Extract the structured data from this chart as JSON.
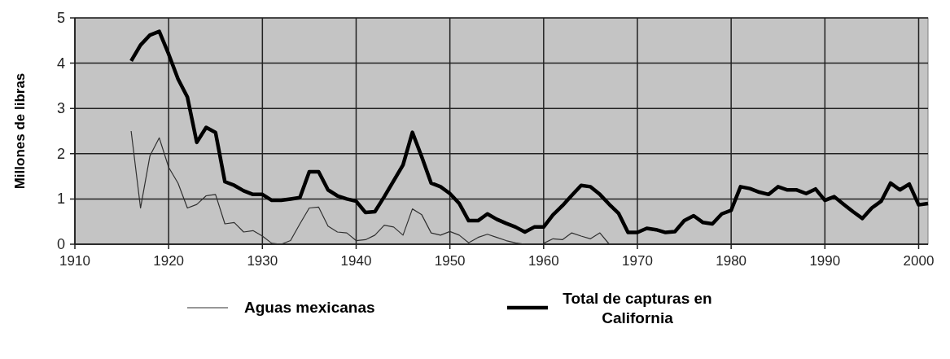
{
  "chart_data": {
    "type": "line",
    "ylabel": "Millones de libras",
    "xlim": [
      1910,
      2001
    ],
    "xticks": [
      1910,
      1920,
      1930,
      1940,
      1950,
      1960,
      1970,
      1980,
      1990,
      2000
    ],
    "ylim": [
      0,
      5
    ],
    "yticks": [
      0,
      1,
      2,
      3,
      4,
      5
    ],
    "grid": true,
    "legend": "bottom",
    "marker": "none",
    "series": [
      {
        "name": "Aguas mexicanas",
        "color": "#303030",
        "x": [
          1916,
          1917,
          1918,
          1919,
          1920,
          1921,
          1922,
          1923,
          1924,
          1925,
          1926,
          1927,
          1928,
          1929,
          1930,
          1931,
          1932,
          1933,
          1934,
          1935,
          1936,
          1937,
          1938,
          1939,
          1940,
          1941,
          1942,
          1943,
          1944,
          1945,
          1946,
          1947,
          1948,
          1949,
          1950,
          1951,
          1952,
          1953,
          1954,
          1955,
          1956,
          1957,
          1958,
          1959,
          1960,
          1961,
          1962,
          1963,
          1964,
          1965,
          1966,
          1967
        ],
        "values": [
          2.5,
          0.8,
          1.95,
          2.35,
          1.7,
          1.35,
          0.8,
          0.88,
          1.07,
          1.1,
          0.45,
          0.48,
          0.27,
          0.3,
          0.18,
          0.02,
          0,
          0.08,
          0.45,
          0.8,
          0.82,
          0.4,
          0.27,
          0.25,
          0.08,
          0.1,
          0.2,
          0.42,
          0.38,
          0.2,
          0.78,
          0.65,
          0.25,
          0.2,
          0.28,
          0.2,
          0.03,
          0.15,
          0.22,
          0.15,
          0.08,
          0.03,
          0,
          null,
          0.02,
          0.12,
          0.1,
          0.25,
          0.18,
          0.12,
          0.25,
          0
        ]
      },
      {
        "name": "Total de capturas en California",
        "color": "#000000",
        "x": [
          1916,
          1917,
          1918,
          1919,
          1920,
          1921,
          1922,
          1923,
          1924,
          1925,
          1926,
          1927,
          1928,
          1929,
          1930,
          1931,
          1932,
          1933,
          1934,
          1935,
          1936,
          1937,
          1938,
          1939,
          1940,
          1941,
          1942,
          1943,
          1944,
          1945,
          1946,
          1947,
          1948,
          1949,
          1950,
          1951,
          1952,
          1953,
          1954,
          1955,
          1956,
          1957,
          1958,
          1959,
          1960,
          1961,
          1962,
          1963,
          1964,
          1965,
          1966,
          1967,
          1968,
          1969,
          1970,
          1971,
          1972,
          1973,
          1974,
          1975,
          1976,
          1977,
          1978,
          1979,
          1980,
          1981,
          1982,
          1983,
          1984,
          1985,
          1986,
          1987,
          1988,
          1989,
          1990,
          1991,
          1992,
          1993,
          1994,
          1995,
          1996,
          1997,
          1998,
          1999,
          2000,
          2001
        ],
        "values": [
          4.05,
          4.4,
          4.62,
          4.7,
          4.2,
          3.65,
          3.25,
          2.25,
          2.58,
          2.47,
          1.38,
          1.3,
          1.18,
          1.1,
          1.1,
          0.97,
          0.97,
          1.0,
          1.03,
          1.6,
          1.6,
          1.2,
          1.07,
          1.0,
          0.95,
          0.7,
          0.72,
          1.05,
          1.4,
          1.75,
          2.47,
          1.93,
          1.35,
          1.27,
          1.12,
          0.9,
          0.52,
          0.52,
          0.67,
          0.55,
          0.46,
          0.38,
          0.27,
          0.38,
          0.38,
          0.65,
          0.85,
          1.08,
          1.3,
          1.27,
          1.1,
          0.88,
          0.68,
          0.26,
          0.26,
          0.35,
          0.32,
          0.26,
          0.28,
          0.52,
          0.63,
          0.48,
          0.45,
          0.67,
          0.75,
          1.27,
          1.23,
          1.15,
          1.1,
          1.27,
          1.2,
          1.2,
          1.12,
          1.22,
          0.97,
          1.05,
          0.88,
          0.72,
          0.57,
          0.8,
          0.95,
          1.35,
          1.2,
          1.33,
          0.87,
          0.9
        ]
      }
    ]
  }
}
